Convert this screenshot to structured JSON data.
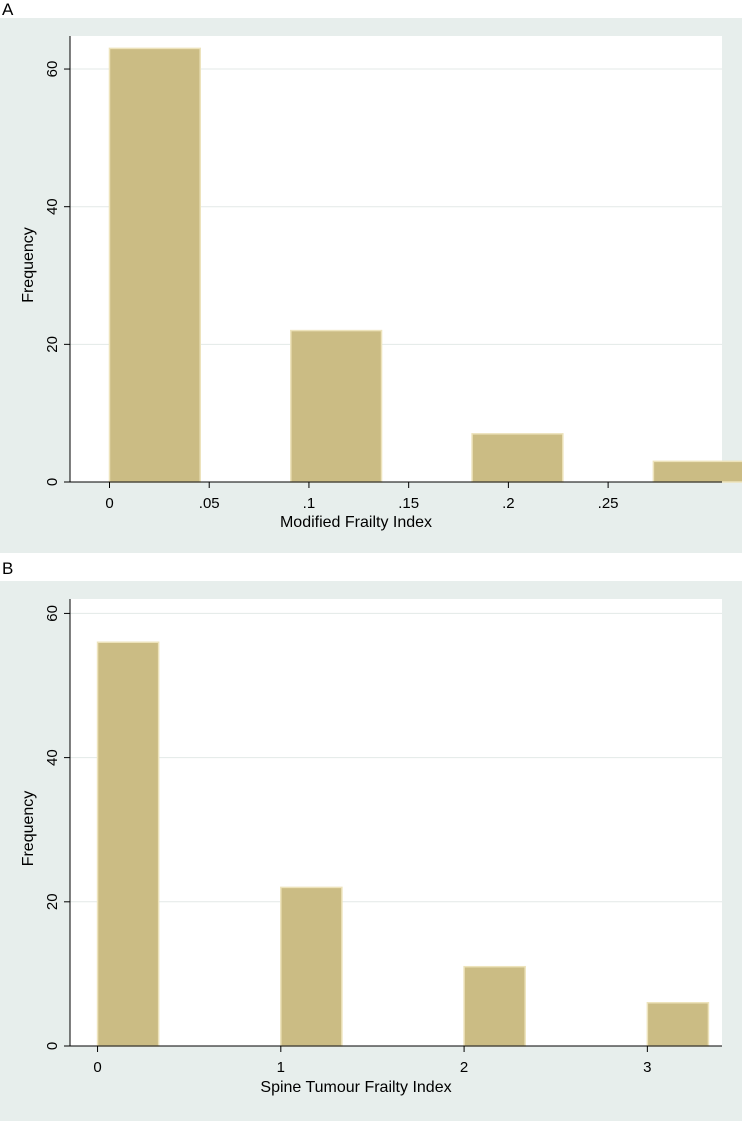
{
  "panels": [
    {
      "letter": "A",
      "chart_data": {
        "type": "bar",
        "title": "",
        "xlabel": "Modified Frailty Index",
        "ylabel": "Frequency",
        "bin_width": 0.0455,
        "bars": [
          {
            "x_start": 0.0,
            "value": 63
          },
          {
            "x_start": 0.0909,
            "value": 22
          },
          {
            "x_start": 0.1818,
            "value": 7
          },
          {
            "x_start": 0.2727,
            "value": 3
          }
        ],
        "x_ticks": [
          {
            "value": 0,
            "label": "0"
          },
          {
            "value": 0.05,
            "label": ".05"
          },
          {
            "value": 0.1,
            "label": ".1"
          },
          {
            "value": 0.15,
            "label": ".15"
          },
          {
            "value": 0.2,
            "label": ".2"
          },
          {
            "value": 0.25,
            "label": ".25"
          }
        ],
        "y_ticks": [
          {
            "value": 0,
            "label": "0"
          },
          {
            "value": 20,
            "label": "20"
          },
          {
            "value": 40,
            "label": "40"
          },
          {
            "value": 60,
            "label": "60"
          }
        ],
        "xlim": [
          -0.0198,
          0.3071
        ],
        "ylim": [
          0,
          64.8
        ],
        "grid": true,
        "colors": {
          "bar_fill": "#cbbc84",
          "bar_edge": "#ede3bb",
          "background": "#e7eeec",
          "plot_bg": "#ffffff",
          "grid": "#e3e9e7"
        }
      }
    },
    {
      "letter": "B",
      "chart_data": {
        "type": "bar",
        "title": "",
        "xlabel": "Spine Tumour Frailty Index",
        "ylabel": "Frequency",
        "bin_width": 0.3333,
        "bars": [
          {
            "x_start": 0.0,
            "value": 56
          },
          {
            "x_start": 1.0,
            "value": 22
          },
          {
            "x_start": 2.0,
            "value": 11
          },
          {
            "x_start": 3.0,
            "value": 6
          }
        ],
        "x_ticks": [
          {
            "value": 0,
            "label": "0"
          },
          {
            "value": 1,
            "label": "1"
          },
          {
            "value": 2,
            "label": "2"
          },
          {
            "value": 3,
            "label": "3"
          }
        ],
        "y_ticks": [
          {
            "value": 0,
            "label": "0"
          },
          {
            "value": 20,
            "label": "20"
          },
          {
            "value": 40,
            "label": "40"
          },
          {
            "value": 60,
            "label": "60"
          }
        ],
        "xlim": [
          -0.1503,
          3.4073
        ],
        "ylim": [
          0,
          62
        ],
        "grid": true,
        "colors": {
          "bar_fill": "#cbbc84",
          "bar_edge": "#ede3bb",
          "background": "#e7eeec",
          "plot_bg": "#ffffff",
          "grid": "#e3e9e7"
        }
      }
    }
  ]
}
